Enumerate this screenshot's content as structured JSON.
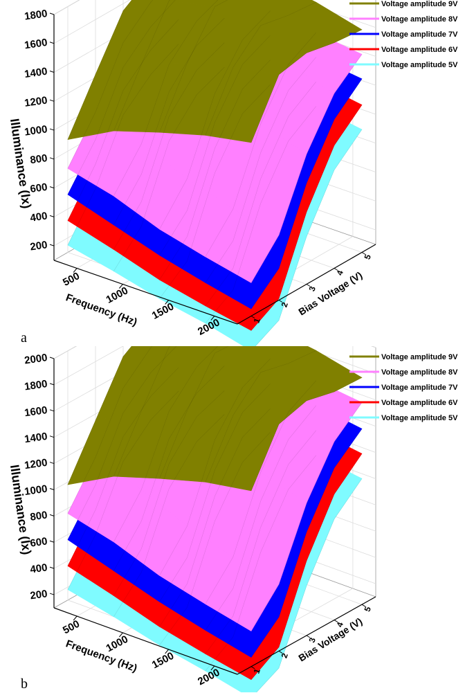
{
  "chart_data": [
    {
      "type": "surface3d",
      "panel_label": "a",
      "xlabel": "Frequency (Hz)",
      "ylabel": "Bias Voltage (V)",
      "zlabel": "Illuminance (lx)",
      "x_ticks": [
        "500",
        "1000",
        "1500",
        "2000"
      ],
      "y_ticks": [
        "1",
        "2",
        "3",
        "4",
        "5"
      ],
      "z_ticks": [
        "200",
        "400",
        "600",
        "800",
        "1000",
        "1200",
        "1400",
        "1600",
        "1800"
      ],
      "zlim": [
        100,
        1800
      ],
      "grid": true,
      "legend_position": "top-right",
      "x": [
        250,
        750,
        1250,
        1750,
        2250
      ],
      "y": [
        1,
        2,
        3,
        4,
        5
      ],
      "series": [
        {
          "name": "Voltage amplitude 5V",
          "color": "#7ffbff",
          "z": [
            [
              150,
              430,
              830,
              1000,
              1100
            ],
            [
              80,
              280,
              760,
              970,
              1050
            ],
            [
              0,
              150,
              650,
              950,
              1040
            ],
            [
              -60,
              60,
              550,
              870,
              1000
            ],
            [
              -140,
              -40,
              430,
              780,
              950
            ]
          ]
        },
        {
          "name": "Voltage amplitude 6V",
          "color": "#ff0000",
          "z": [
            [
              320,
              600,
              1000,
              1170,
              1270
            ],
            [
              230,
              450,
              930,
              1140,
              1220
            ],
            [
              130,
              320,
              820,
              1120,
              1210
            ],
            [
              60,
              210,
              720,
              1040,
              1170
            ],
            [
              0,
              110,
              600,
              950,
              1120
            ]
          ]
        },
        {
          "name": "Voltage amplitude 7V",
          "color": "#0000ff",
          "z": [
            [
              500,
              770,
              1160,
              1330,
              1430
            ],
            [
              400,
              640,
              1100,
              1310,
              1390
            ],
            [
              300,
              500,
              1000,
              1290,
              1380
            ],
            [
              220,
              400,
              900,
              1220,
              1340
            ],
            [
              150,
              320,
              800,
              1130,
              1300
            ]
          ]
        },
        {
          "name": "Voltage amplitude 8V",
          "color": "#ff80ff",
          "z": [
            [
              680,
              960,
              1330,
              1500,
              1600
            ],
            [
              600,
              850,
              1290,
              1480,
              1560
            ],
            [
              480,
              720,
              1200,
              1460,
              1550
            ],
            [
              400,
              620,
              1100,
              1400,
              1510
            ],
            [
              330,
              550,
              1000,
              1310,
              1470
            ]
          ]
        },
        {
          "name": "Voltage amplitude 9V",
          "color": "#808000",
          "z": [
            [
              880,
              1220,
              1550,
              1680,
              1750
            ],
            [
              1050,
              1400,
              1730,
              1770,
              1760
            ],
            [
              1150,
              1520,
              1800,
              1790,
              1770
            ],
            [
              1240,
              1600,
              1780,
              1740,
              1720
            ],
            [
              1300,
              1660,
              1700,
              1660,
              1640
            ]
          ]
        }
      ]
    },
    {
      "type": "surface3d",
      "panel_label": "b",
      "xlabel": "Frequency (Hz)",
      "ylabel": "Bias Voltage (V)",
      "zlabel": "Illuminance (lx)",
      "x_ticks": [
        "500",
        "1000",
        "1500",
        "2000"
      ],
      "y_ticks": [
        "1",
        "2",
        "3",
        "4",
        "5"
      ],
      "z_ticks": [
        "200",
        "400",
        "600",
        "800",
        "1000",
        "1200",
        "1400",
        "1600",
        "1800",
        "2000"
      ],
      "zlim": [
        100,
        2000
      ],
      "grid": true,
      "legend_position": "top-right",
      "x": [
        250,
        750,
        1250,
        1750,
        2250
      ],
      "y": [
        1,
        2,
        3,
        4,
        5
      ],
      "series": [
        {
          "name": "Voltage amplitude 5V",
          "color": "#7ffbff",
          "z": [
            [
              180,
              480,
              920,
              1120,
              1220
            ],
            [
              100,
              320,
              840,
              1080,
              1170
            ],
            [
              10,
              180,
              720,
              1050,
              1160
            ],
            [
              -60,
              80,
              610,
              970,
              1110
            ],
            [
              -140,
              -30,
              480,
              870,
              1060
            ]
          ]
        },
        {
          "name": "Voltage amplitude 6V",
          "color": "#ff0000",
          "z": [
            [
              360,
              670,
              1110,
              1300,
              1400
            ],
            [
              260,
              500,
              1030,
              1270,
              1350
            ],
            [
              150,
              360,
              910,
              1240,
              1340
            ],
            [
              70,
              240,
              800,
              1160,
              1300
            ],
            [
              0,
              130,
              670,
              1060,
              1250
            ]
          ]
        },
        {
          "name": "Voltage amplitude 7V",
          "color": "#0000ff",
          "z": [
            [
              560,
              860,
              1290,
              1480,
              1580
            ],
            [
              450,
              710,
              1220,
              1450,
              1540
            ],
            [
              340,
              560,
              1110,
              1430,
              1530
            ],
            [
              250,
              450,
              1000,
              1350,
              1490
            ],
            [
              170,
              360,
              890,
              1260,
              1440
            ]
          ]
        },
        {
          "name": "Voltage amplitude 8V",
          "color": "#ff80ff",
          "z": [
            [
              760,
              1070,
              1480,
              1670,
              1780
            ],
            [
              670,
              950,
              1430,
              1650,
              1740
            ],
            [
              540,
              800,
              1340,
              1620,
              1720
            ],
            [
              450,
              690,
              1220,
              1560,
              1680
            ],
            [
              370,
              610,
              1110,
              1460,
              1640
            ]
          ]
        },
        {
          "name": "Voltage amplitude 9V",
          "color": "#808000",
          "z": [
            [
              980,
              1350,
              1720,
              1860,
              1940
            ],
            [
              1170,
              1550,
              1920,
              1960,
              1950
            ],
            [
              1280,
              1680,
              2000,
              1990,
              1960
            ],
            [
              1380,
              1770,
              1980,
              1930,
              1910
            ],
            [
              1440,
              1830,
              1890,
              1840,
              1830
            ]
          ]
        }
      ]
    }
  ]
}
